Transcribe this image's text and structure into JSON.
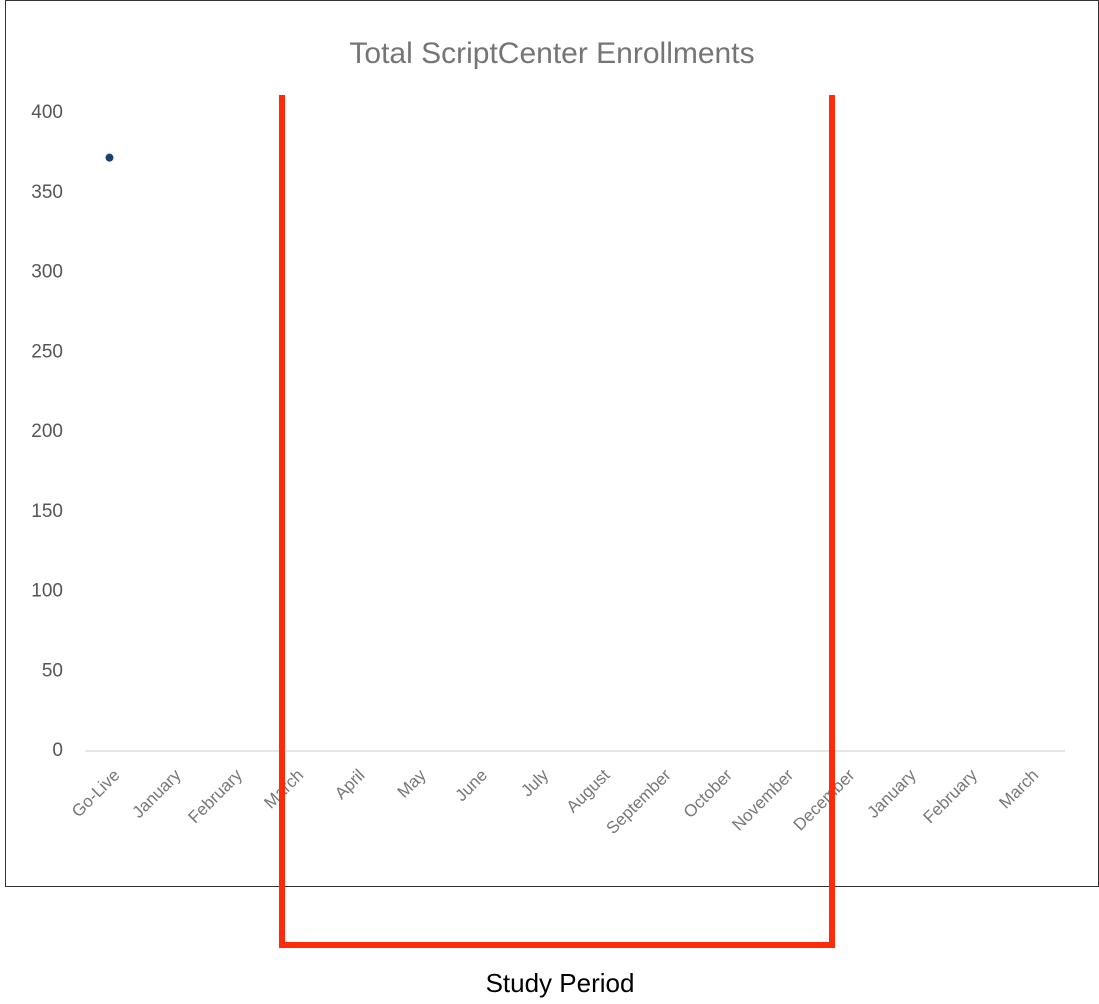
{
  "chart_data": {
    "type": "line",
    "title": "Total ScriptCenter Enrollments",
    "categories": [
      "Go-Live",
      "January",
      "February",
      "March",
      "April",
      "May",
      "June",
      "July",
      "August",
      "September",
      "October",
      "November",
      "December",
      "January",
      "February",
      "March"
    ],
    "series": [
      {
        "name": "Total ScriptCenter Enrollments",
        "color": "#1f3f6e",
        "values": [
          372,
          null,
          null,
          null,
          null,
          null,
          null,
          null,
          null,
          null,
          null,
          null,
          null,
          null,
          null,
          null
        ]
      }
    ],
    "ylim": [
      0,
      400
    ],
    "yticks": [
      0,
      50,
      100,
      150,
      200,
      250,
      300,
      350,
      400
    ],
    "grid": false,
    "annotation": "Study Period"
  }
}
